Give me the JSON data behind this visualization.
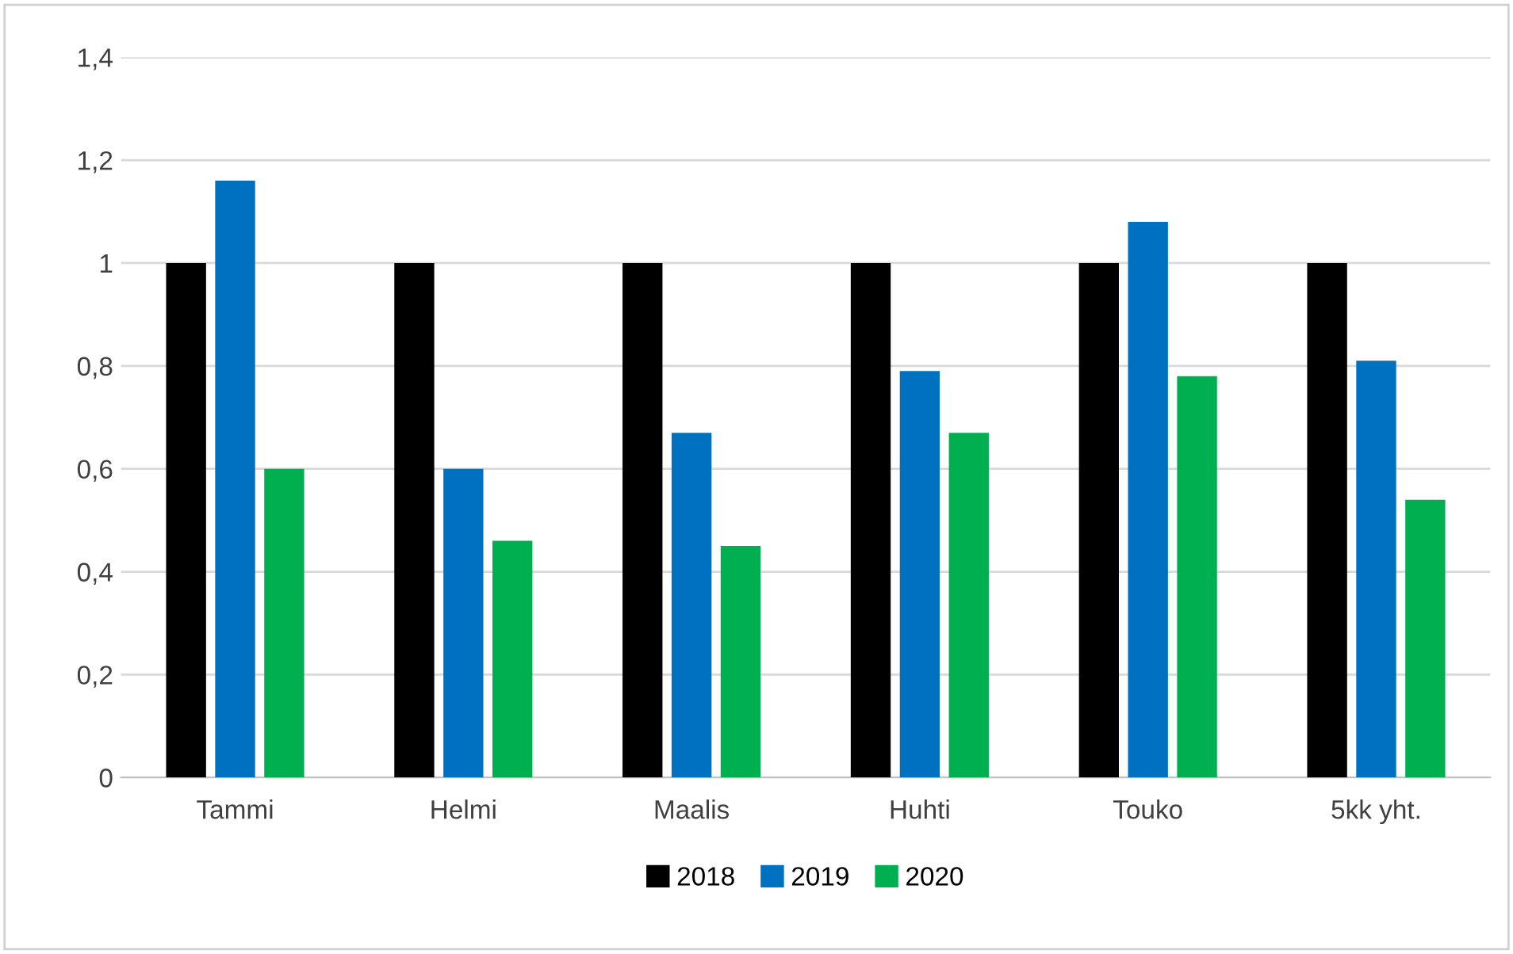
{
  "chart_data": {
    "type": "bar",
    "categories": [
      "Tammi",
      "Helmi",
      "Maalis",
      "Huhti",
      "Touko",
      "5kk yht."
    ],
    "series": [
      {
        "name": "2018",
        "color": "#000000",
        "values": [
          1,
          1,
          1,
          1,
          1,
          1
        ]
      },
      {
        "name": "2019",
        "color": "#0070c0",
        "values": [
          1.16,
          0.6,
          0.67,
          0.79,
          1.08,
          0.81
        ]
      },
      {
        "name": "2020",
        "color": "#00b050",
        "values": [
          0.6,
          0.46,
          0.45,
          0.67,
          0.78,
          0.54
        ]
      }
    ],
    "ylim": [
      0,
      1.4
    ],
    "yticks": [
      0,
      {
        "value": 0.2,
        "label": "0,2"
      },
      {
        "value": 0.4,
        "label": "0,4"
      },
      {
        "value": 0.6,
        "label": "0,6"
      },
      {
        "value": 0.8,
        "label": "0,8"
      },
      1,
      {
        "value": 1.2,
        "label": "1,2"
      },
      {
        "value": 1.4,
        "label": "1,4"
      }
    ],
    "grid": "y",
    "legend": "bottom"
  }
}
